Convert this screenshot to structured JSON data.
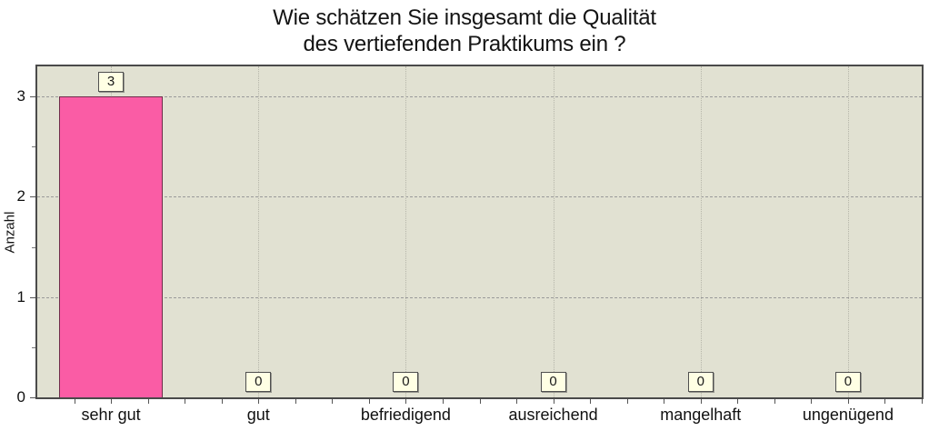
{
  "title": {
    "line1": "Wie schätzen Sie insgesamt die Qualität",
    "line2": "des vertiefenden Praktikums ein ?"
  },
  "chart_data": {
    "type": "bar",
    "title": "Wie schätzen Sie insgesamt die Qualität des vertiefenden Praktikums ein ?",
    "categories": [
      "sehr gut",
      "gut",
      "befriedigend",
      "ausreichend",
      "mangelhaft",
      "ungenügend"
    ],
    "values": [
      3,
      0,
      0,
      0,
      0,
      0
    ],
    "bar_labels": [
      "3",
      "0",
      "0",
      "0",
      "0",
      "0"
    ],
    "xlabel": "",
    "ylabel": "Anzahl",
    "ylim": [
      0,
      3.3
    ],
    "yticks": [
      0,
      1,
      2,
      3
    ],
    "minor_yticks": [
      0.5,
      1.5,
      2.5
    ],
    "grid": "horizontal dashed lines at 1,2,3; vertical dotted lines at category centers",
    "legend_position": "none",
    "colors": {
      "bar_fill": "#fa5ca5",
      "bar_border": "#6e2c4a",
      "plot_bg": "#e1e1d2",
      "plot_border": "#4a4a4a",
      "grid_h": "#9a9a9a",
      "grid_v": "#b6b6aa",
      "label_box_bg": "#ffffe4",
      "label_box_border": "#4f4f4f",
      "text": "#141414"
    }
  }
}
